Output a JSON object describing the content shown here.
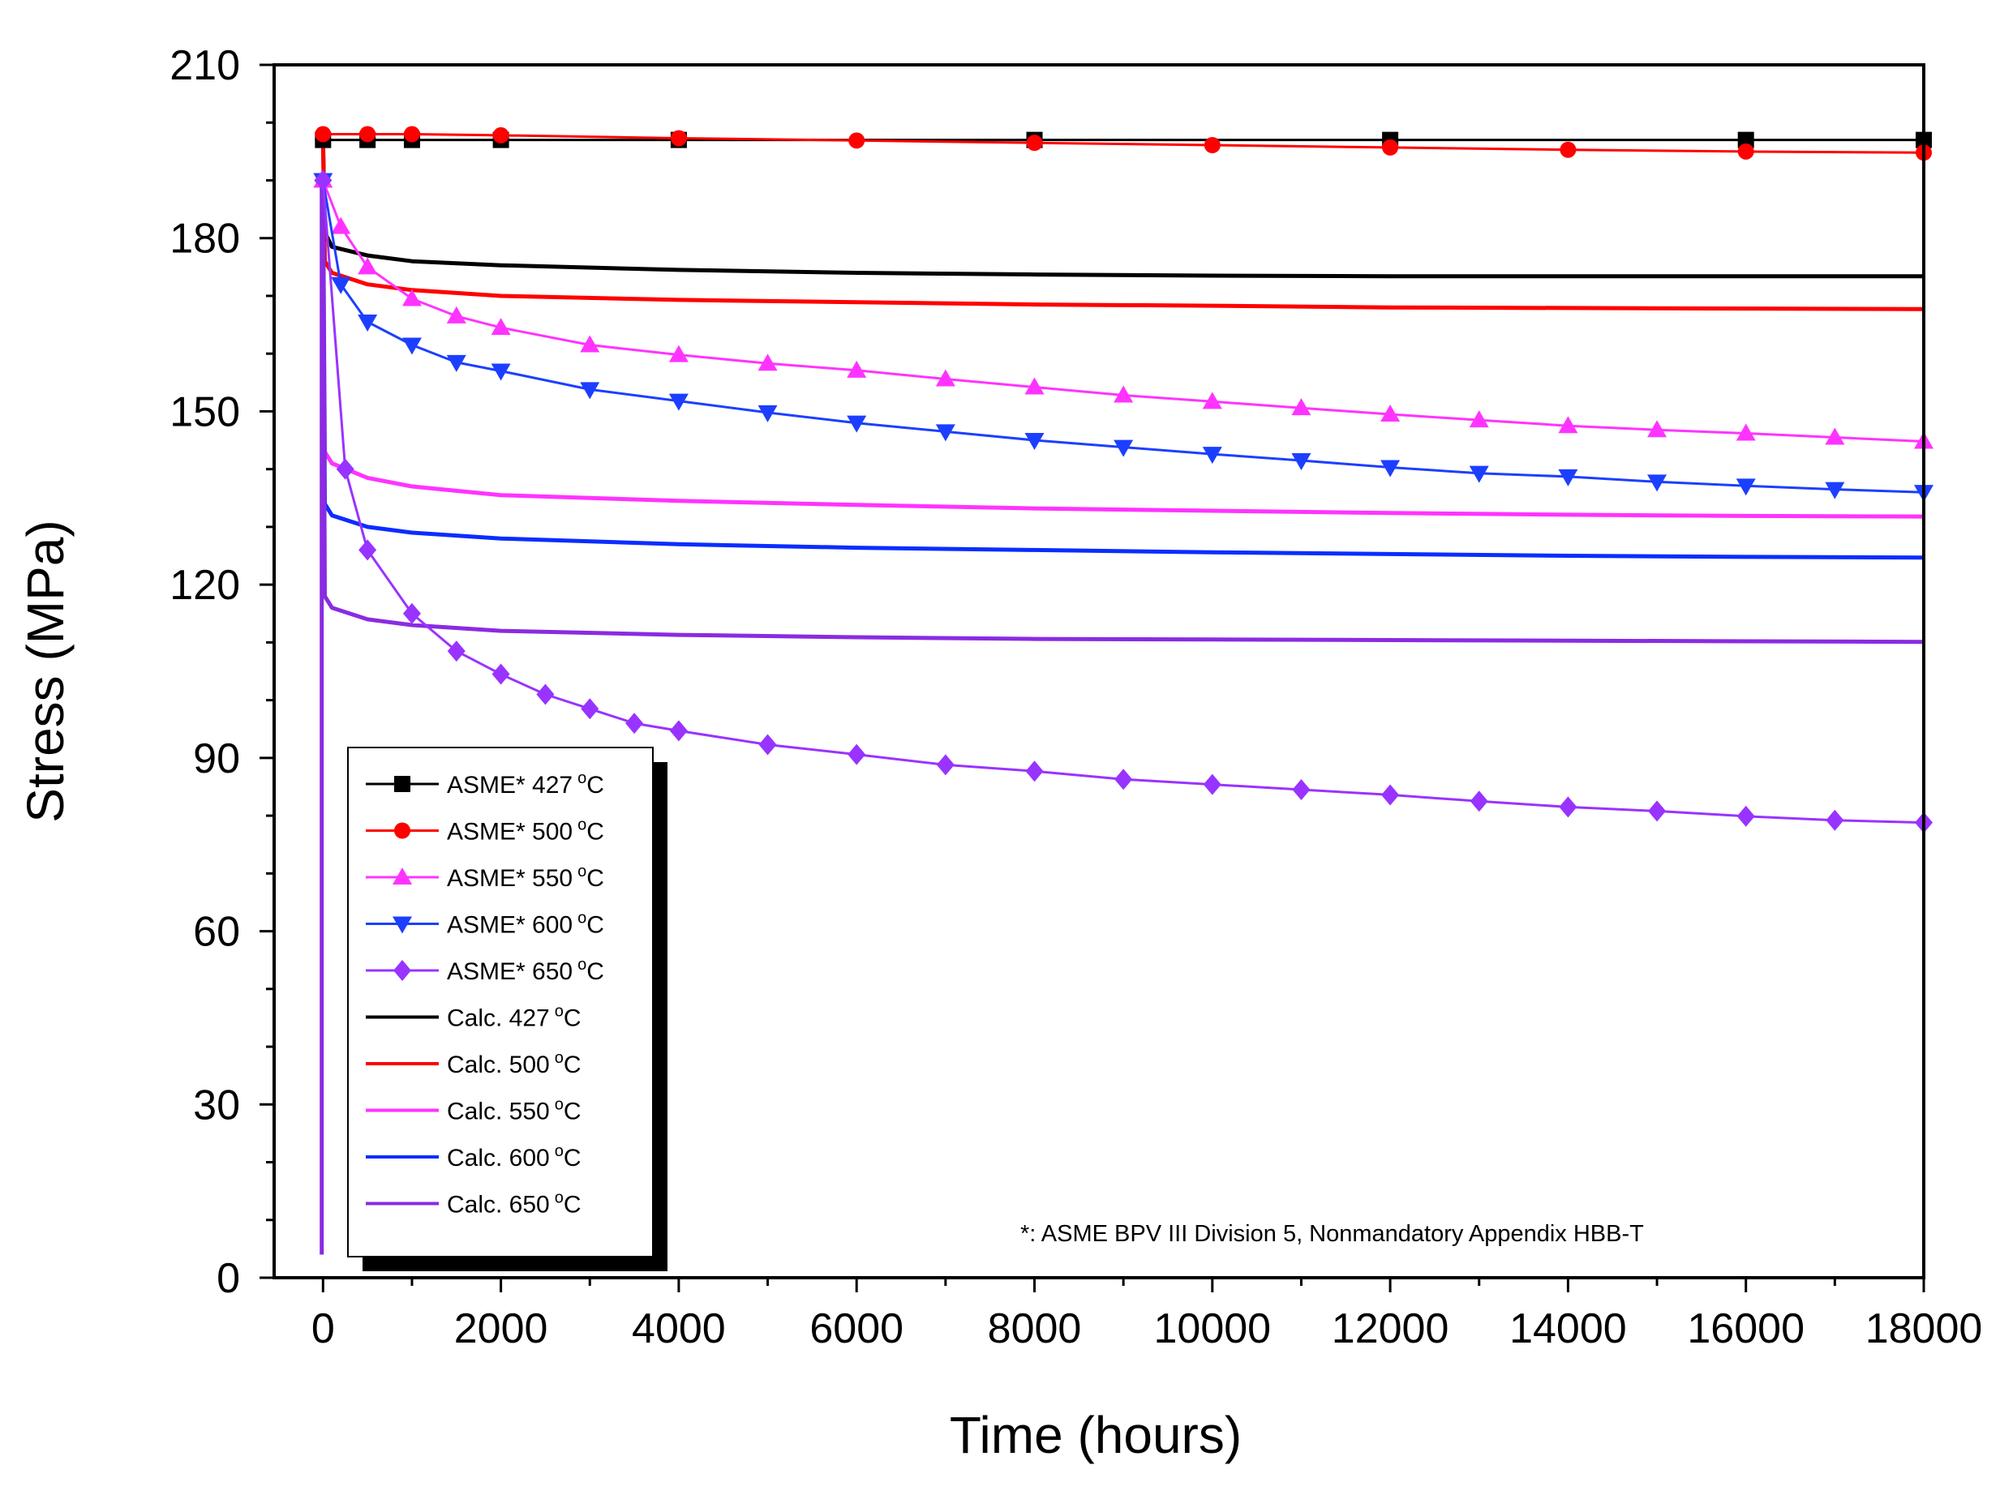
{
  "chart_data": {
    "type": "line",
    "xlabel": "Time (hours)",
    "ylabel": "Stress (MPa)",
    "xlim": [
      -550,
      18000
    ],
    "ylim": [
      0,
      210
    ],
    "xticks": [
      0,
      2000,
      4000,
      6000,
      8000,
      10000,
      12000,
      14000,
      16000,
      18000
    ],
    "yticks": [
      0,
      30,
      60,
      90,
      120,
      150,
      180,
      210
    ],
    "xtick_labels": [
      "0",
      "2000",
      "4000",
      "6000",
      "8000",
      "10000",
      "12000",
      "14000",
      "16000",
      "18000"
    ],
    "ytick_labels": [
      "0",
      "30",
      "60",
      "90",
      "120",
      "150",
      "180",
      "210"
    ],
    "footnote": "*: ASME BPV III Division 5, Nonmandatory Appendix HBB-T",
    "legend_position": "lower-left",
    "series": [
      {
        "name": "ASME* 427°C",
        "label": "ASME* 427",
        "unit": "°C",
        "color": "#000000",
        "marker": "square",
        "x": [
          0,
          500,
          1000,
          2000,
          4000,
          8000,
          12000,
          16000,
          18000
        ],
        "y": [
          197,
          197,
          197,
          197,
          197,
          197,
          197,
          197,
          197
        ]
      },
      {
        "name": "ASME* 500°C",
        "label": "ASME* 500",
        "unit": "°C",
        "color": "#ff0000",
        "marker": "circle",
        "x": [
          0,
          500,
          1000,
          2000,
          4000,
          6000,
          8000,
          10000,
          12000,
          14000,
          16000,
          18000
        ],
        "y": [
          198,
          198,
          198,
          197.8,
          197.3,
          196.9,
          196.5,
          196.1,
          195.7,
          195.3,
          195,
          194.8
        ]
      },
      {
        "name": "ASME* 550°C",
        "label": "ASME* 550",
        "unit": "°C",
        "color": "#ff33ff",
        "marker": "triangle-up",
        "x": [
          0,
          200,
          500,
          1000,
          1500,
          2000,
          3000,
          4000,
          5000,
          6000,
          7000,
          8000,
          9000,
          10000,
          11000,
          12000,
          13000,
          14000,
          15000,
          16000,
          17000,
          18000
        ],
        "y": [
          190,
          182,
          175,
          169.5,
          166.5,
          164.5,
          161.5,
          159.8,
          158.3,
          157.1,
          155.6,
          154.2,
          152.8,
          151.7,
          150.6,
          149.5,
          148.5,
          147.5,
          146.8,
          146.2,
          145.5,
          144.8
        ]
      },
      {
        "name": "ASME* 600°C",
        "label": "ASME* 600",
        "unit": "°C",
        "color": "#1c3fff",
        "marker": "triangle-down",
        "x": [
          0,
          200,
          500,
          1000,
          1500,
          2000,
          3000,
          4000,
          5000,
          6000,
          7000,
          8000,
          9000,
          10000,
          11000,
          12000,
          13000,
          14000,
          15000,
          16000,
          17000,
          18000
        ],
        "y": [
          190,
          172,
          165.5,
          161.5,
          158.5,
          157,
          153.8,
          151.8,
          149.8,
          148,
          146.5,
          145,
          143.8,
          142.6,
          141.5,
          140.3,
          139.3,
          138.7,
          137.8,
          137.1,
          136.5,
          136
        ]
      },
      {
        "name": "ASME* 650°C",
        "label": "ASME* 650",
        "unit": "°C",
        "color": "#9933ff",
        "marker": "diamond",
        "x": [
          0,
          250,
          500,
          1000,
          1500,
          2000,
          2500,
          3000,
          3500,
          4000,
          5000,
          6000,
          7000,
          8000,
          9000,
          10000,
          11000,
          12000,
          13000,
          14000,
          15000,
          16000,
          17000,
          18000
        ],
        "y": [
          190,
          140,
          126,
          115,
          108.5,
          104.5,
          101,
          98.5,
          96,
          94.7,
          92.3,
          90.6,
          88.8,
          87.7,
          86.3,
          85.4,
          84.5,
          83.6,
          82.5,
          81.5,
          80.8,
          79.9,
          79.2,
          78.8
        ]
      },
      {
        "name": "Calc. 427°C",
        "label": "Calc.   427",
        "unit": "°C",
        "color": "#000000",
        "marker": "none",
        "x": [
          0,
          20,
          100,
          500,
          1000,
          2000,
          4000,
          6000,
          8000,
          10000,
          12000,
          14000,
          16000,
          18000
        ],
        "y": [
          197,
          181,
          178.5,
          177,
          176,
          175.3,
          174.5,
          174,
          173.7,
          173.5,
          173.4,
          173.4,
          173.4,
          173.4
        ]
      },
      {
        "name": "Calc. 500°C",
        "label": "Calc.   500",
        "unit": "°C",
        "color": "#ff0000",
        "marker": "none",
        "x": [
          0,
          20,
          100,
          500,
          1000,
          2000,
          4000,
          6000,
          8000,
          10000,
          12000,
          14000,
          16000,
          18000
        ],
        "y": [
          197,
          176,
          174,
          172,
          171,
          170,
          169.3,
          168.9,
          168.5,
          168.3,
          168,
          167.9,
          167.8,
          167.7
        ]
      },
      {
        "name": "Calc. 550°C",
        "label": "Calc.   550",
        "unit": "°C",
        "color": "#ff33ff",
        "marker": "none",
        "x": [
          0,
          20,
          100,
          500,
          1000,
          2000,
          4000,
          6000,
          8000,
          10000,
          12000,
          14000,
          16000,
          18000
        ],
        "y": [
          190,
          143,
          141,
          138.5,
          137,
          135.5,
          134.5,
          133.8,
          133.2,
          132.8,
          132.4,
          132.1,
          131.9,
          131.8
        ]
      },
      {
        "name": "Calc. 600°C",
        "label": "Calc.   600",
        "unit": "°C",
        "color": "#0a2dff",
        "marker": "none",
        "x": [
          0,
          20,
          100,
          500,
          1000,
          2000,
          4000,
          6000,
          8000,
          10000,
          12000,
          14000,
          16000,
          18000
        ],
        "y": [
          190,
          134,
          132,
          130,
          129,
          128,
          127,
          126.4,
          126,
          125.6,
          125.3,
          125,
          124.8,
          124.7
        ]
      },
      {
        "name": "Calc. 650°C",
        "label": "Calc.   650",
        "unit": "°C",
        "color": "#8a2be2",
        "marker": "none",
        "x": [
          -15,
          -15,
          0,
          20,
          100,
          500,
          1000,
          2000,
          4000,
          6000,
          8000,
          10000,
          12000,
          14000,
          16000,
          18000
        ],
        "y": [
          4,
          190,
          190,
          118,
          116,
          114,
          113,
          112,
          111.3,
          110.9,
          110.6,
          110.5,
          110.4,
          110.3,
          110.2,
          110.1
        ]
      }
    ]
  }
}
